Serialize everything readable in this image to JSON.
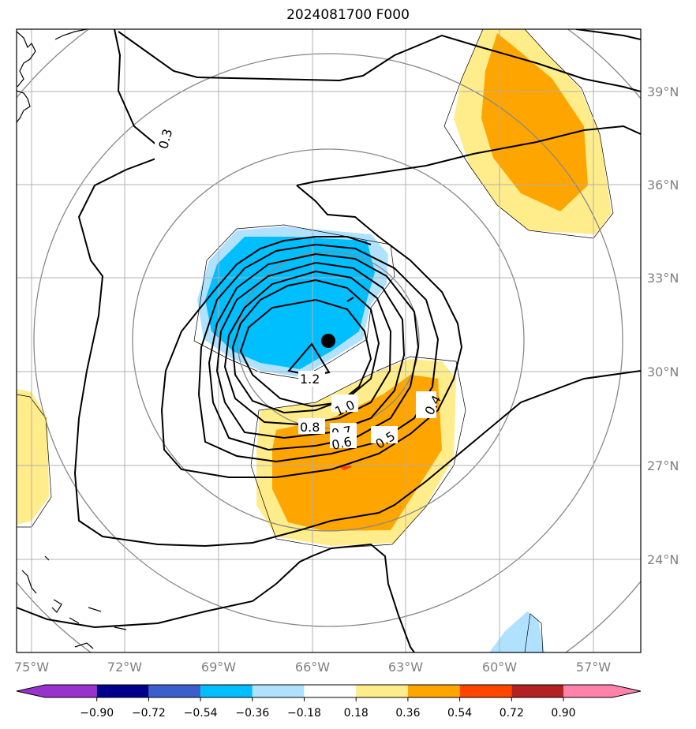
{
  "title": "2024081700 F000",
  "map": {
    "lon_labels": [
      "75°W",
      "72°W",
      "69°W",
      "66°W",
      "63°W",
      "60°W",
      "57°W"
    ],
    "lat_labels": [
      "39°N",
      "36°N",
      "33°N",
      "30°N",
      "27°N",
      "24°N"
    ],
    "contour_labels": [
      "0.3",
      "1.2",
      "1.0",
      "0.8",
      "0.7",
      "0.6",
      "0.5",
      "0.4"
    ],
    "storm_center_marker": "black-dot"
  },
  "colorbar": {
    "ticks": [
      "−0.90",
      "−0.72",
      "−0.54",
      "−0.36",
      "−0.18",
      "0.18",
      "0.36",
      "0.54",
      "0.72",
      "0.90"
    ],
    "colors": [
      "#9932CC",
      "#00008B",
      "#3A5FCD",
      "#00BFFF",
      "#B0E2FF",
      "#FFFFFF",
      "#FFEC8B",
      "#FFA500",
      "#FF4500",
      "#B22222",
      "#FF82AB"
    ]
  }
}
